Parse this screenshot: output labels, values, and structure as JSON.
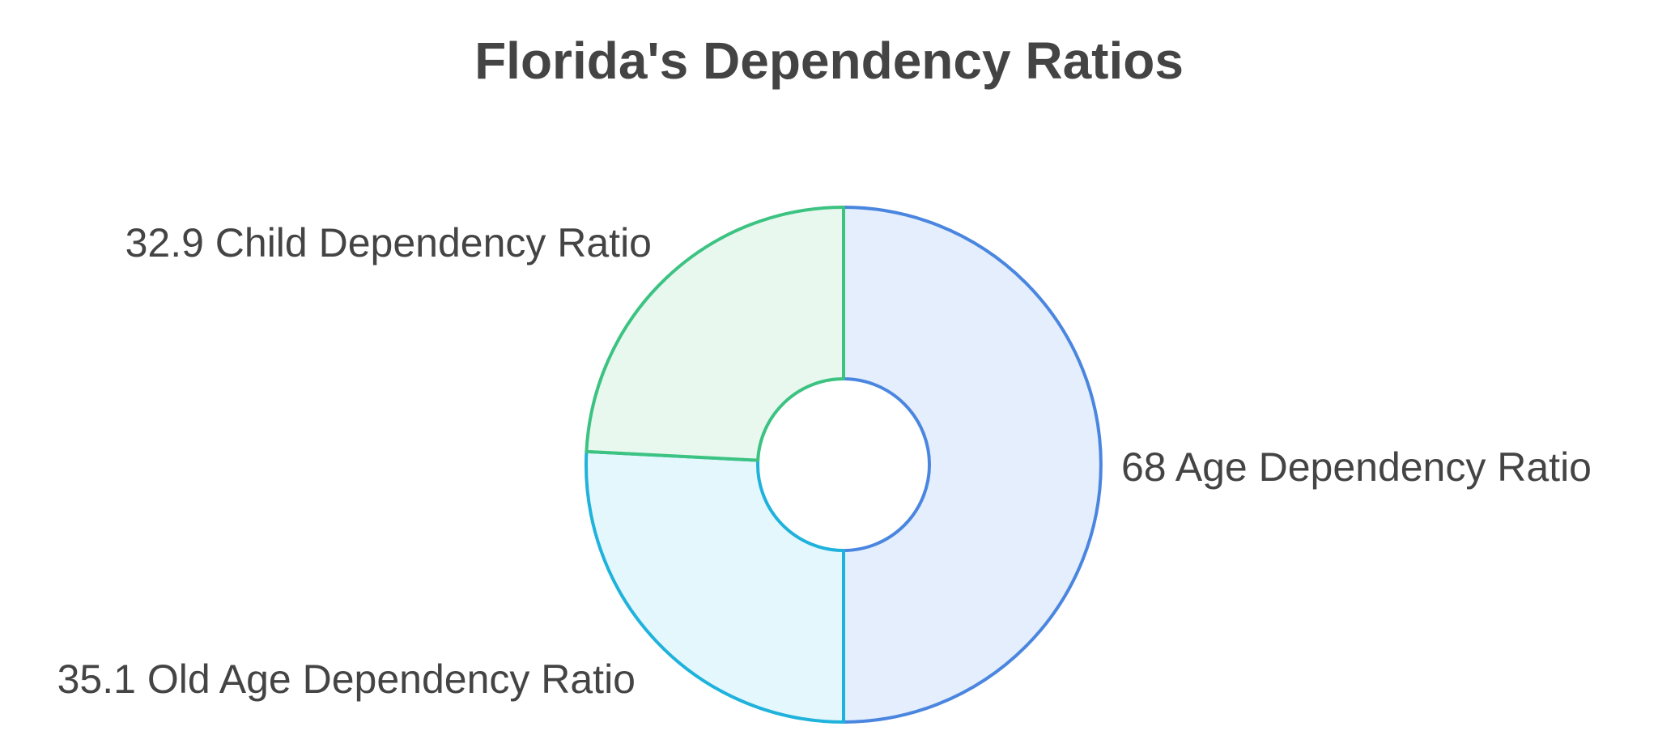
{
  "title": "Florida's Dependency Ratios",
  "chart_data": {
    "type": "pie",
    "title": "Florida's Dependency Ratios",
    "slices": [
      {
        "label": "Age Dependency Ratio",
        "value": 68,
        "display": "68 Age Dependency Ratio",
        "stroke": "#4A86E0",
        "fill": "#E4EEFC"
      },
      {
        "label": "Old Age Dependency Ratio",
        "value": 35.1,
        "display": "35.1 Old Age Dependency Ratio",
        "stroke": "#1FB2DC",
        "fill": "#E3F7FC"
      },
      {
        "label": "Child Dependency Ratio",
        "value": 32.9,
        "display": "32.9 Child Dependency Ratio",
        "stroke": "#3CC382",
        "fill": "#E8F8EF"
      }
    ],
    "style": "donut",
    "text_color": "#444444"
  }
}
